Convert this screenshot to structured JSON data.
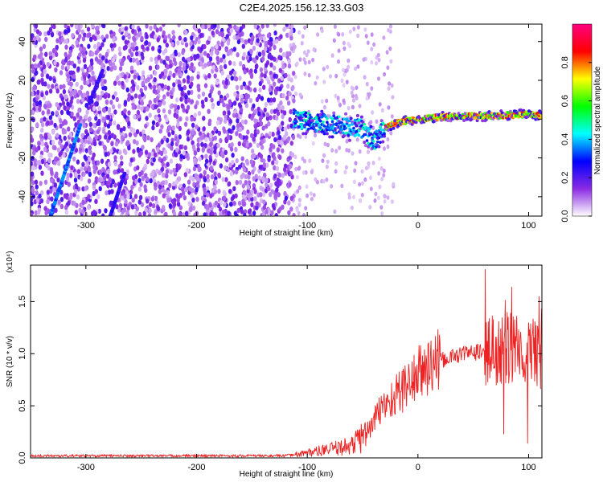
{
  "title": "C2E4.2025.156.12.33.G03",
  "chart_data": [
    {
      "type": "heatmap",
      "name": "spectrogram",
      "xlabel": "Height of straight line (km)",
      "ylabel": "Frequency (Hz)",
      "xlim": [
        -350,
        112
      ],
      "ylim": [
        -50,
        49
      ],
      "xticks": [
        -300,
        -200,
        -100,
        0,
        100
      ],
      "yticks": [
        -40,
        -20,
        0,
        20,
        40
      ],
      "colorbar": {
        "label": "Normalized spectral amplitude",
        "range": [
          0,
          1
        ],
        "ticks": [
          "0.0",
          "0.2",
          "0.4",
          "0.6",
          "0.8"
        ],
        "colormap": [
          "#ffffff",
          "#8a2be2",
          "#0000ff",
          "#00ffff",
          "#00ff00",
          "#ffff00",
          "#ff0000",
          "#ff0080"
        ]
      },
      "ridge": {
        "description": "carrier line",
        "x": [
          -110,
          -90,
          -70,
          -50,
          -40,
          -30,
          -20,
          0,
          20,
          40,
          60,
          80,
          100,
          112
        ],
        "y": [
          0,
          -2,
          -3,
          -5,
          -12,
          -5,
          -2,
          0,
          1,
          1.5,
          1.5,
          2,
          2.5,
          2
        ]
      }
    },
    {
      "type": "line",
      "name": "snr",
      "xlabel": "Height of straight line (km)",
      "ylabel": "SNR (10 * v/v)",
      "scale_note": "(x10⁴)",
      "xlim": [
        -350,
        112
      ],
      "ylim": [
        0,
        1.85
      ],
      "xticks": [
        -300,
        -200,
        -100,
        0,
        100
      ],
      "yticks": [
        "0.0",
        "0.5",
        "1.0",
        "1.5"
      ],
      "color": "#ee2222",
      "envelope": {
        "x": [
          -350,
          -120,
          -100,
          -80,
          -60,
          -45,
          -35,
          -25,
          -10,
          0,
          10,
          25,
          40,
          60,
          80,
          100,
          112
        ],
        "y": [
          0.02,
          0.02,
          0.05,
          0.08,
          0.12,
          0.25,
          0.45,
          0.55,
          0.7,
          0.8,
          0.88,
          0.95,
          1.0,
          1.02,
          1.05,
          1.02,
          0.95
        ]
      }
    }
  ]
}
